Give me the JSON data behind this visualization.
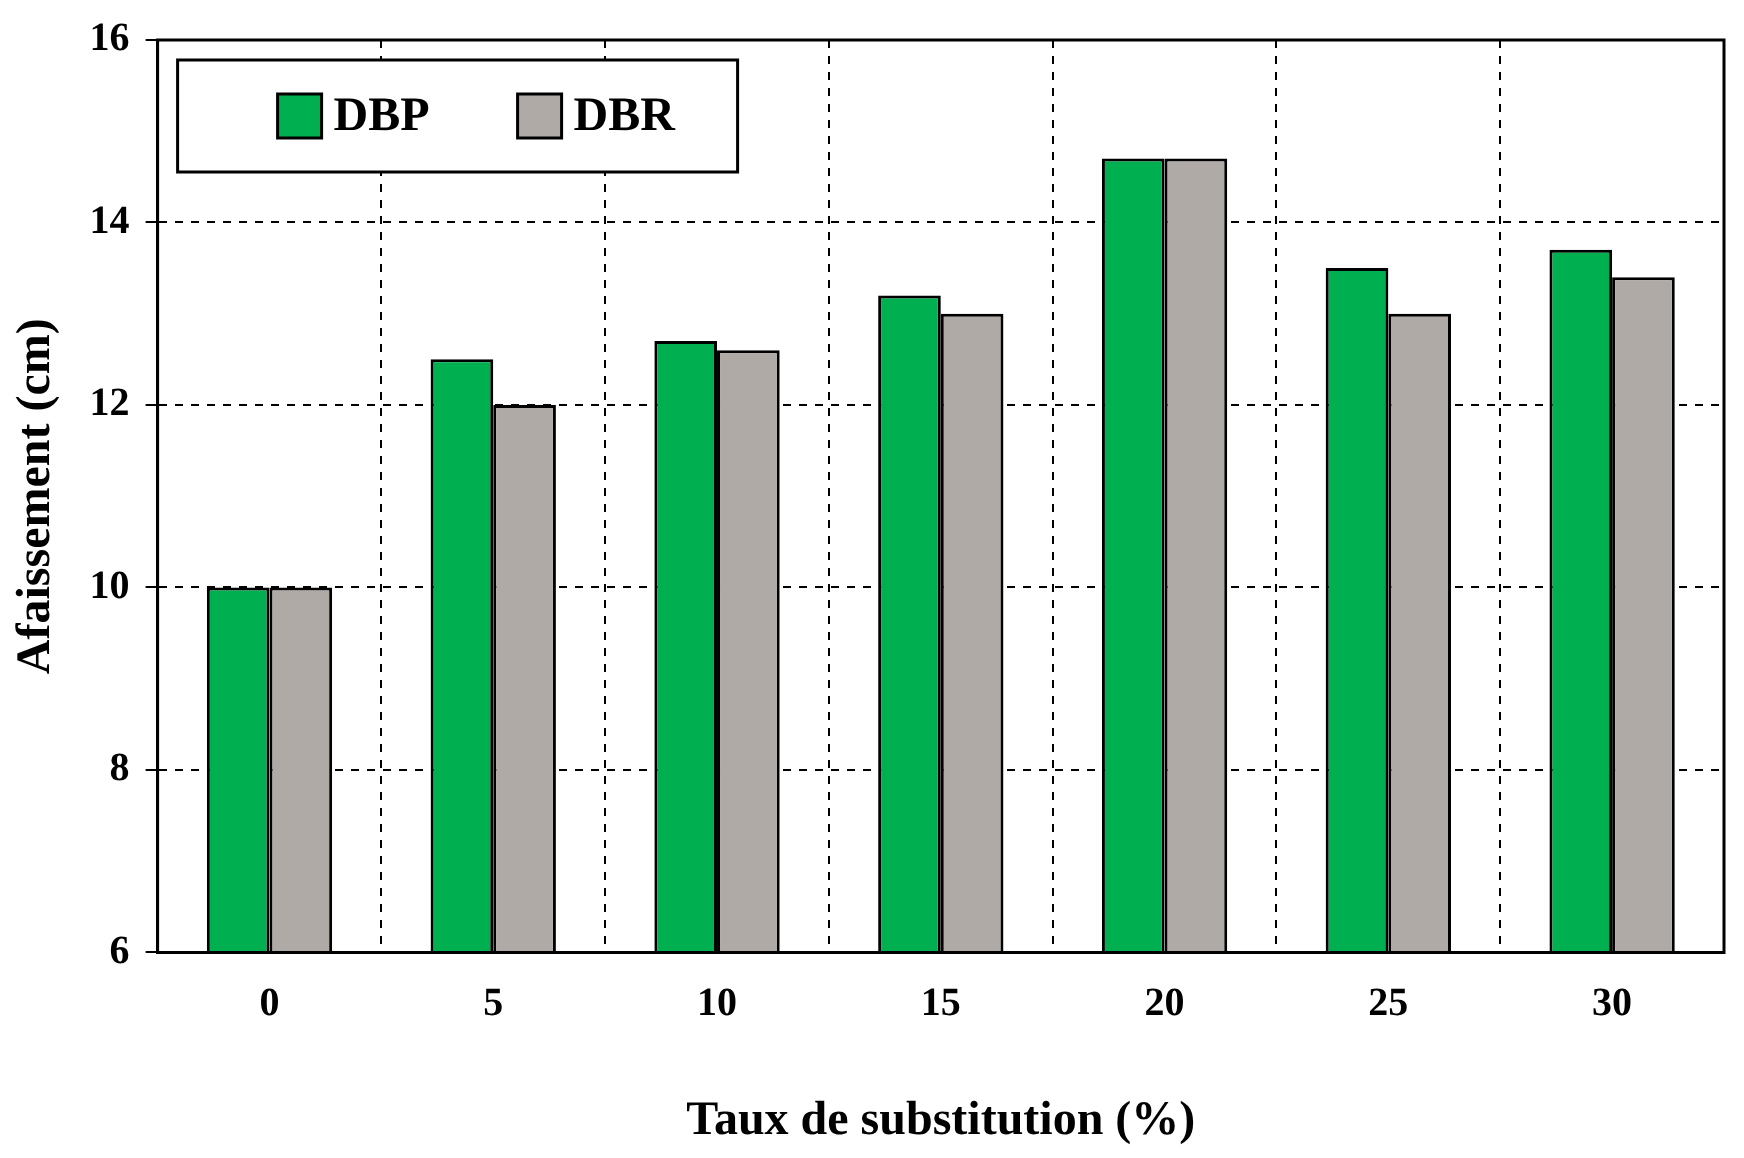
{
  "chart_data": {
    "type": "bar",
    "xlabel": "Taux de substitution (%)",
    "ylabel": "Afaissement (cm)",
    "categories": [
      "0",
      "5",
      "10",
      "15",
      "20",
      "25",
      "30"
    ],
    "series": [
      {
        "name": "DBP",
        "color": "#00b050",
        "values": [
          10,
          12.5,
          12.7,
          13.2,
          14.7,
          13.5,
          13.7
        ]
      },
      {
        "name": "DBR",
        "color": "#b0aaa7",
        "values": [
          10,
          12.0,
          12.6,
          13.0,
          14.7,
          13.0,
          13.4
        ]
      }
    ],
    "ylim": [
      6,
      16
    ],
    "yticks": [
      6,
      8,
      10,
      12,
      14,
      16
    ],
    "grid": true,
    "legend": "top left"
  }
}
